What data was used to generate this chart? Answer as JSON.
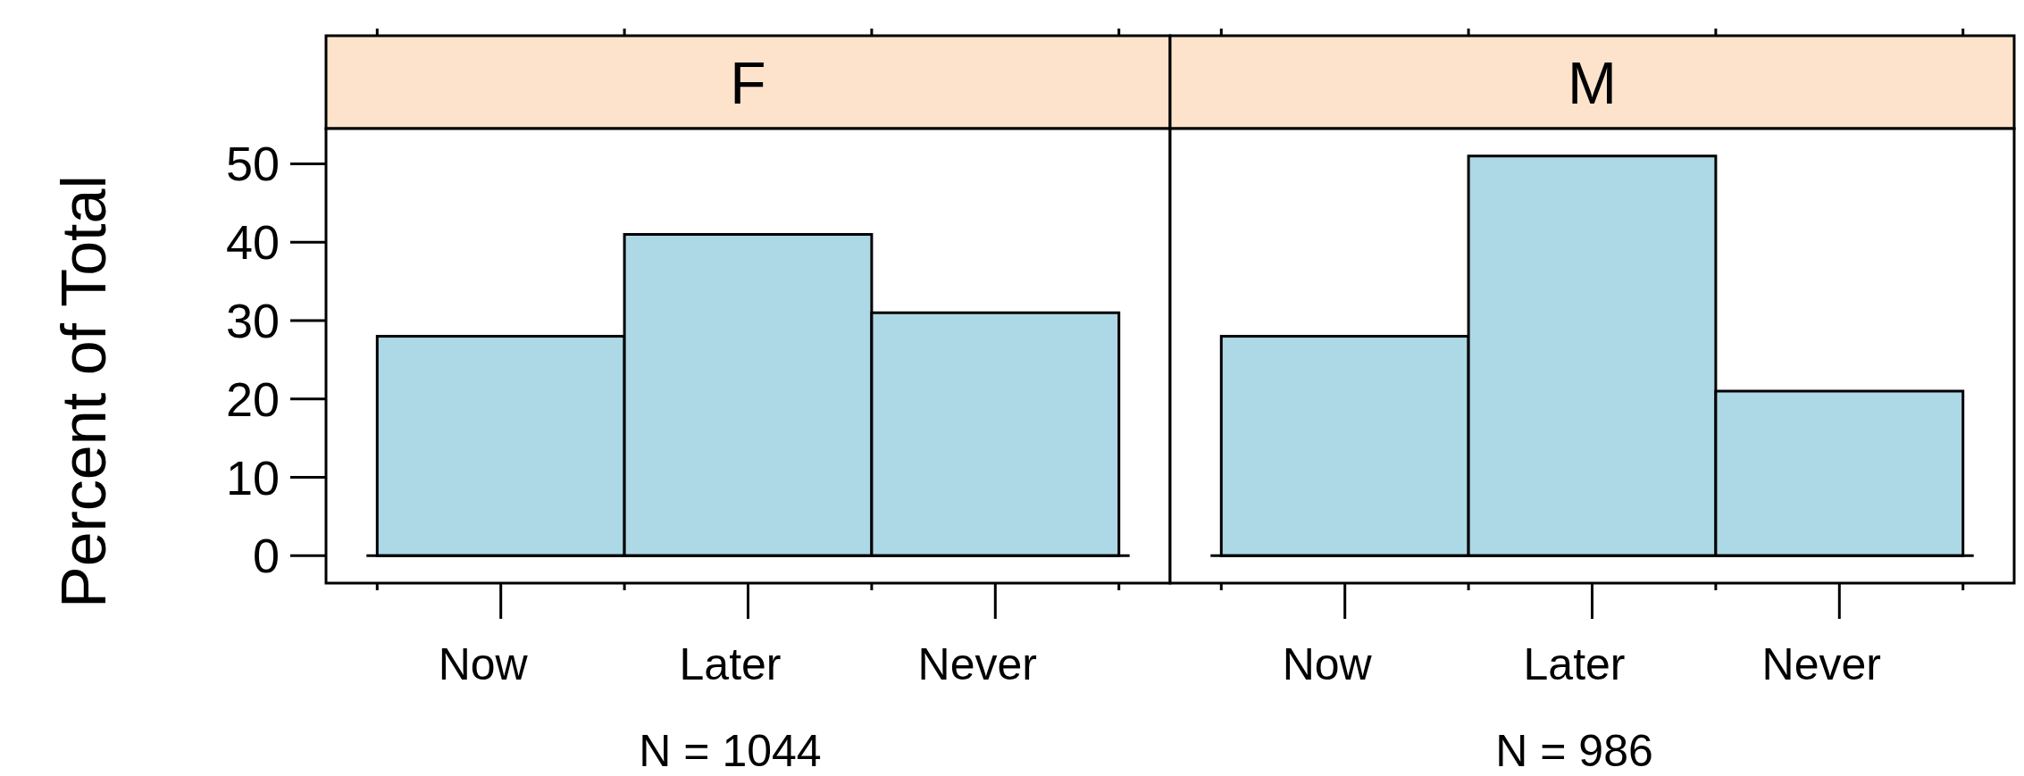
{
  "chart_data": [
    {
      "type": "bar",
      "title": "F",
      "xlabel": "N = 1044",
      "ylabel": "Percent of Total",
      "categories": [
        "Now",
        "Later",
        "Never"
      ],
      "values": [
        28,
        41,
        31
      ],
      "color": "#add8e6",
      "ylim": [
        -3.5,
        54.5
      ],
      "yticks": [
        0,
        10,
        20,
        30,
        40,
        50
      ],
      "ref_lines": [
        {
          "axis": "y",
          "value": 0
        }
      ]
    },
    {
      "type": "bar",
      "title": "M",
      "xlabel": "N = 986",
      "categories": [
        "Now",
        "Later",
        "Never"
      ],
      "values": [
        28,
        51,
        21
      ],
      "color": "#add8e6",
      "ylim": [
        -3.5,
        54.5
      ],
      "tick_labels": "x",
      "ref_lines": [
        {
          "axis": "y",
          "value": 0
        }
      ]
    }
  ]
}
